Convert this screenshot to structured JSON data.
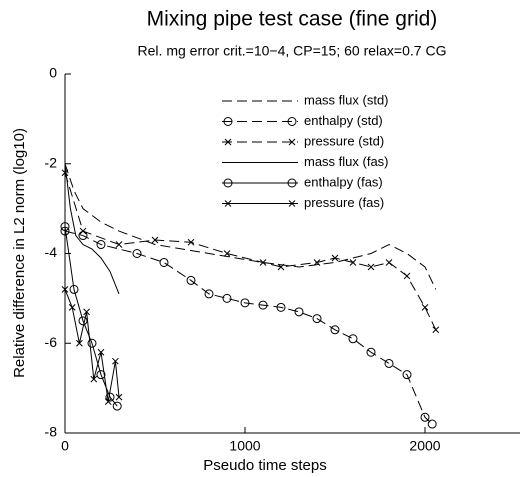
{
  "chart_data": {
    "type": "line",
    "title": "Mixing pipe test case (fine grid)",
    "subtitle": "Rel. mg error crit.=10−4, CP=15; 60 relax=0.7 CG",
    "x_label": "Pseudo time steps",
    "y_label": "Relative difference in L2 norm (log10)",
    "xlim": [
      0,
      2500
    ],
    "xticks": [
      0,
      1000,
      2000
    ],
    "ylim": [
      -8,
      0
    ],
    "yticks": [
      0,
      -2,
      -4,
      -6,
      -8
    ],
    "legend": "upper center",
    "grid": false,
    "series": [
      {
        "name": "mass flux (std)",
        "color": "#000000",
        "style": "dashed",
        "marker": null,
        "x": [
          0,
          50,
          100,
          200,
          300,
          500,
          800,
          1100,
          1300,
          1500,
          1700,
          1800,
          1900,
          2000,
          2060
        ],
        "values": [
          -2.0,
          -2.6,
          -3.0,
          -3.3,
          -3.5,
          -3.8,
          -4.0,
          -4.2,
          -4.3,
          -4.2,
          -4.0,
          -3.8,
          -4.0,
          -4.3,
          -4.8
        ]
      },
      {
        "name": "enthalpy (std)",
        "color": "#000000",
        "style": "dashed",
        "marker": "circle",
        "x": [
          0,
          100,
          200,
          400,
          550,
          700,
          800,
          900,
          1000,
          1100,
          1200,
          1300,
          1400,
          1500,
          1600,
          1700,
          1800,
          1900,
          2000,
          2040
        ],
        "values": [
          -3.5,
          -3.6,
          -3.8,
          -4.0,
          -4.2,
          -4.6,
          -4.9,
          -5.0,
          -5.1,
          -5.15,
          -5.2,
          -5.3,
          -5.45,
          -5.7,
          -5.9,
          -6.2,
          -6.45,
          -6.7,
          -7.65,
          -7.8
        ]
      },
      {
        "name": "pressure (std)",
        "color": "#000000",
        "style": "dashed",
        "marker": "x",
        "x": [
          0,
          100,
          300,
          500,
          700,
          900,
          1100,
          1200,
          1400,
          1500,
          1600,
          1700,
          1800,
          1900,
          2000,
          2060
        ],
        "values": [
          -2.2,
          -3.5,
          -3.8,
          -3.7,
          -3.75,
          -4.0,
          -4.2,
          -4.3,
          -4.2,
          -4.1,
          -4.2,
          -4.3,
          -4.2,
          -4.5,
          -5.2,
          -5.7
        ]
      },
      {
        "name": "mass flux (fas)",
        "color": "#000000",
        "style": "solid",
        "marker": null,
        "x": [
          0,
          30,
          60,
          100,
          150,
          200,
          250,
          300
        ],
        "values": [
          -2.0,
          -3.0,
          -3.6,
          -3.8,
          -3.9,
          -4.1,
          -4.4,
          -4.9
        ]
      },
      {
        "name": "enthalpy (fas)",
        "color": "#000000",
        "style": "solid",
        "marker": "circle",
        "x": [
          0,
          50,
          100,
          150,
          200,
          250,
          290
        ],
        "values": [
          -3.4,
          -4.8,
          -5.5,
          -6.0,
          -6.7,
          -7.2,
          -7.4
        ]
      },
      {
        "name": "pressure (fas)",
        "color": "#000000",
        "style": "solid",
        "marker": "x",
        "x": [
          0,
          40,
          80,
          120,
          160,
          200,
          240,
          280,
          300
        ],
        "values": [
          -4.8,
          -5.2,
          -6.0,
          -5.3,
          -6.8,
          -6.2,
          -7.3,
          -6.4,
          -7.2
        ]
      }
    ]
  }
}
